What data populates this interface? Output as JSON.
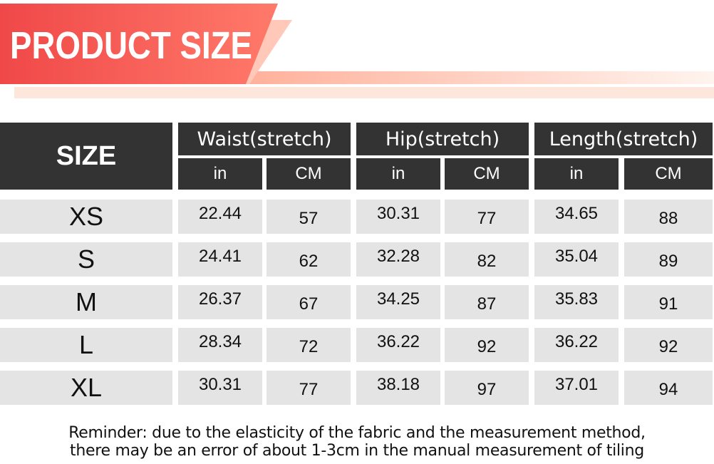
{
  "header": {
    "title": "PRODUCT SIZE"
  },
  "table": {
    "size_label": "SIZE",
    "groups": [
      {
        "name": "Waist(stretch)",
        "units": [
          "in",
          "CM"
        ]
      },
      {
        "name": "Hip(stretch)",
        "units": [
          "in",
          "CM"
        ]
      },
      {
        "name": "Length(stretch)",
        "units": [
          "in",
          "CM"
        ]
      }
    ],
    "rows": [
      [
        "XS",
        "22.44",
        "57",
        "30.31",
        "77",
        "34.65",
        "88"
      ],
      [
        "S",
        "24.41",
        "62",
        "32.28",
        "82",
        "35.04",
        "89"
      ],
      [
        "M",
        "26.37",
        "67",
        "34.25",
        "87",
        "35.83",
        "91"
      ],
      [
        "L",
        "28.34",
        "72",
        "36.22",
        "92",
        "36.22",
        "92"
      ],
      [
        "XL",
        "30.31",
        "77",
        "38.18",
        "97",
        "37.01",
        "94"
      ]
    ]
  },
  "reminder": [
    "Reminder: due to the elasticity of the fabric and the measurement method,",
    "there may be an error of about 1-3cm in the manual measurement of tiling"
  ]
}
